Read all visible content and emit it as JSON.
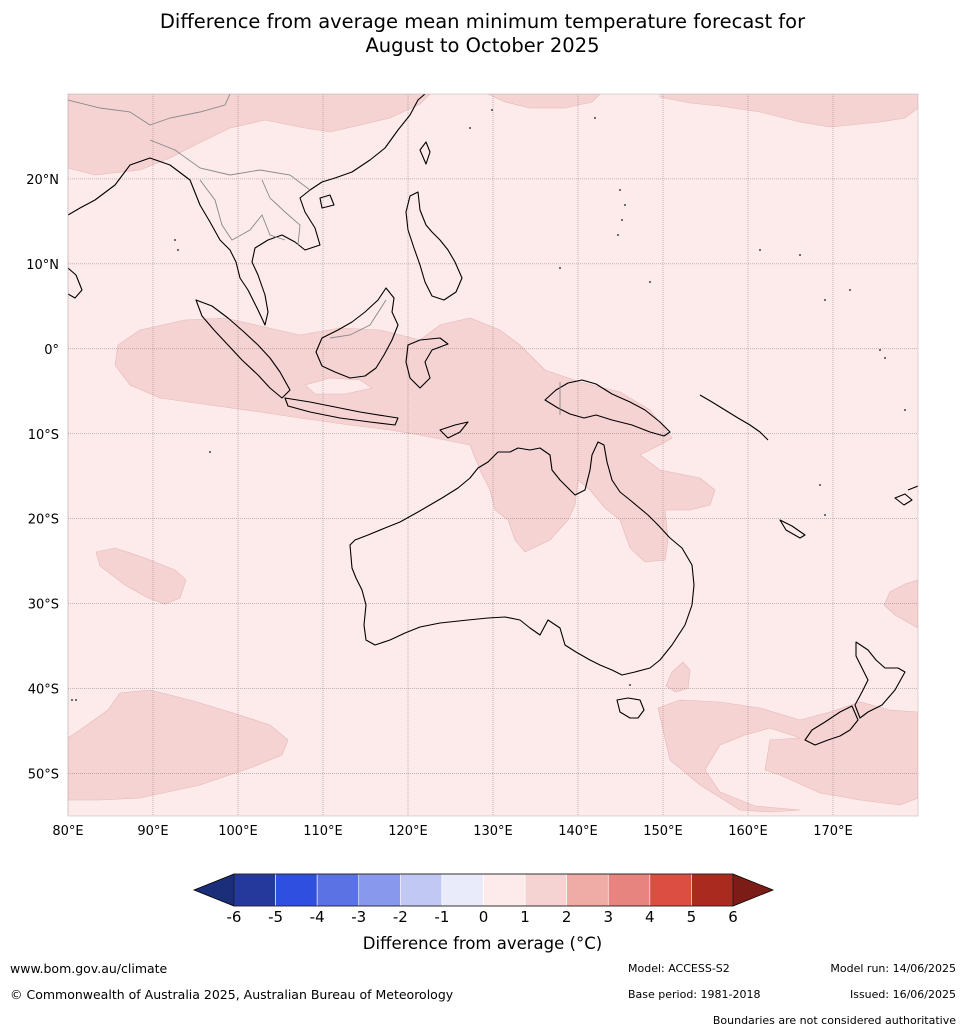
{
  "title": {
    "line1": "Difference from average mean minimum temperature forecast for",
    "line2": "August to October 2025"
  },
  "map": {
    "region": "Maritime Continent, Australia and South-West Pacific",
    "lon_labels": [
      "80°E",
      "90°E",
      "100°E",
      "110°E",
      "120°E",
      "130°E",
      "140°E",
      "150°E",
      "160°E",
      "170°E"
    ],
    "lat_labels": [
      "20°N",
      "10°N",
      "0°",
      "10°S",
      "20°S",
      "30°S",
      "40°S",
      "50°S"
    ],
    "lon_range": [
      80,
      180
    ],
    "lat_range": [
      -55,
      30
    ],
    "gridlines": true
  },
  "colorbar": {
    "ticks": [
      "-6",
      "-5",
      "-4",
      "-3",
      "-2",
      "-1",
      "0",
      "1",
      "2",
      "3",
      "4",
      "5",
      "6"
    ],
    "colors": [
      "#25399c",
      "#2f4fe0",
      "#5a72e3",
      "#8898ec",
      "#c1c8f4",
      "#e9ebfb",
      "#fcebea",
      "#f5d3d3",
      "#efaba6",
      "#e8847f",
      "#dc4d42",
      "#ab2a20"
    ],
    "under_color": "#1a2e7a",
    "over_color": "#7c1c17",
    "label": "Difference from average (°C)"
  },
  "palette": {
    "background_0_1": "#fcebea",
    "shade_1_2": "#f5d3d3"
  },
  "footer": {
    "website": "www.bom.gov.au/climate",
    "copyright": "© Commonwealth of Australia 2025, Australian Bureau of Meteorology",
    "model": "Model: ACCESS-S2",
    "base_period": "Base period: 1981-2018",
    "model_run": "Model run: 14/06/2025",
    "issued": "Issued: 16/06/2025",
    "disclaimer": "Boundaries are not considered authoritative"
  }
}
